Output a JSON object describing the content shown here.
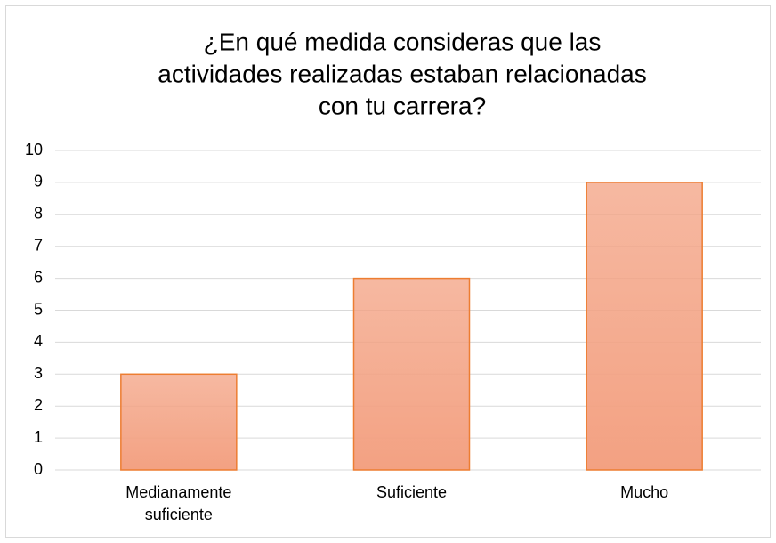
{
  "chart_data": {
    "type": "bar",
    "title": [
      "¿En qué medida consideras que las",
      "actividades realizadas estaban relacionadas",
      "con tu carrera?"
    ],
    "categories": [
      "Medianamente suficiente",
      "Suficiente",
      "Mucho"
    ],
    "values": [
      3,
      6,
      9
    ],
    "color": "#f3a182",
    "edge_color": "#ed7d31",
    "ylim": [
      0,
      10
    ],
    "yticks": [
      0,
      1,
      2,
      3,
      4,
      5,
      6,
      7,
      8,
      9,
      10
    ],
    "grid": true
  }
}
